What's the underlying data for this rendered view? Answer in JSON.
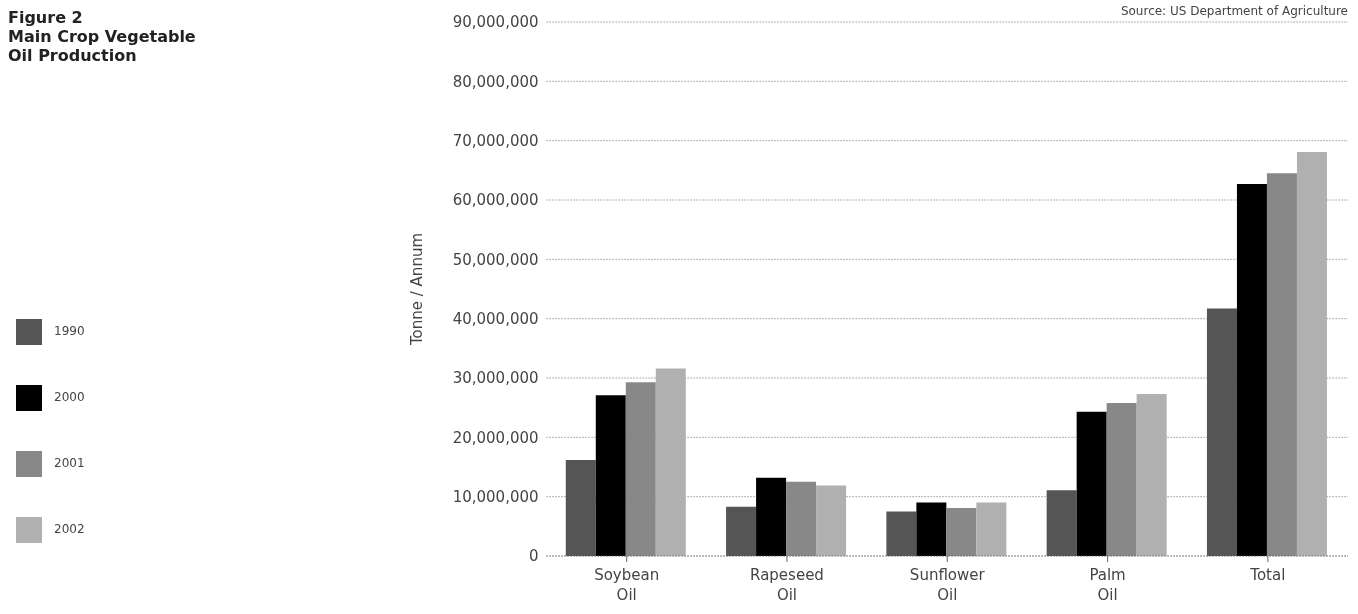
{
  "chart_data": {
    "type": "bar",
    "title": "Figure 2\nMain Crop Vegetable\nOil Production",
    "ylabel": "Tonne / Annum",
    "annotations": [
      "Source: US Department of Agriculture"
    ],
    "categories": [
      "Soybean Oil",
      "Rapeseed Oil",
      "Sunflower Oil",
      "Palm Oil",
      "Total"
    ],
    "series": [
      {
        "name": "1990",
        "color": "#555555",
        "values": [
          16200000,
          8300000,
          7500000,
          11100000,
          41700000
        ]
      },
      {
        "name": "2000",
        "color": "#000000",
        "values": [
          27100000,
          13200000,
          9000000,
          24300000,
          62700000
        ]
      },
      {
        "name": "2001",
        "color": "#888888",
        "values": [
          29300000,
          12500000,
          8100000,
          25800000,
          64500000
        ]
      },
      {
        "name": "2002",
        "color": "#b0b0b0",
        "values": [
          31600000,
          11900000,
          9000000,
          27300000,
          68100000
        ]
      }
    ],
    "ylim": [
      0,
      90000000
    ],
    "yticks": [
      0,
      {
        "value": 10000000,
        "label": "10,000,000"
      },
      {
        "value": 20000000,
        "label": "20,000,000"
      },
      {
        "value": 30000000,
        "label": "30,000,000"
      },
      {
        "value": 40000000,
        "label": "40,000,000"
      },
      {
        "value": 50000000,
        "label": "50,000,000"
      },
      {
        "value": 60000000,
        "label": "60,000,000"
      },
      {
        "value": 70000000,
        "label": "70,000,000"
      },
      {
        "value": 80000000,
        "label": "80,000,000"
      },
      {
        "value": 90000000,
        "label": "90,000,000"
      }
    ],
    "grid": "y",
    "legend": "left"
  }
}
